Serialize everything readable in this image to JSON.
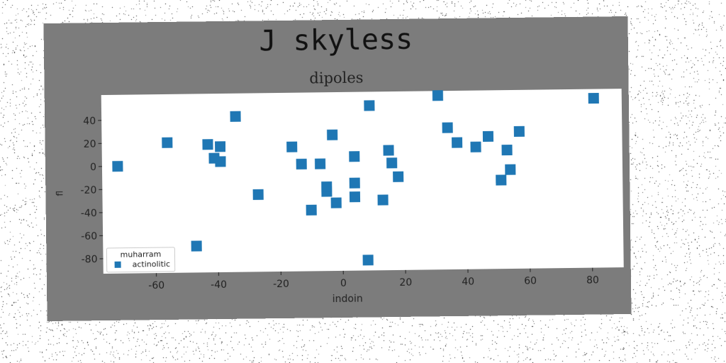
{
  "chart_data": {
    "type": "scatter",
    "title": "J skyless",
    "subtitle": "dipoles",
    "xlabel": "indoin",
    "ylabel": "fl",
    "xlim": [
      -77,
      90
    ],
    "ylim": [
      -93,
      62
    ],
    "xticks": [
      -60,
      -40,
      -20,
      0,
      20,
      40,
      60,
      80
    ],
    "yticks": [
      40,
      20,
      0,
      -20,
      -40,
      -60,
      -80
    ],
    "grid": false,
    "legend": {
      "title": "muharram",
      "placement": "lower-left",
      "entries": [
        "actinolitic"
      ]
    },
    "series": [
      {
        "name": "actinolitic",
        "color": "#1f77b4",
        "marker": "square",
        "points": [
          [
            -72,
            0
          ],
          [
            -56,
            20
          ],
          [
            -47,
            -70
          ],
          [
            -43,
            18
          ],
          [
            -41,
            6
          ],
          [
            -39,
            16
          ],
          [
            -39,
            3
          ],
          [
            -34,
            42
          ],
          [
            -27,
            -26
          ],
          [
            -16,
            15
          ],
          [
            -13,
            0
          ],
          [
            -10,
            -40
          ],
          [
            -7,
            0
          ],
          [
            -5,
            -24
          ],
          [
            -5,
            -20
          ],
          [
            -3,
            25
          ],
          [
            -2,
            -34
          ],
          [
            4,
            6
          ],
          [
            4,
            -17
          ],
          [
            4,
            -29
          ],
          [
            8,
            -84
          ],
          [
            9,
            50
          ],
          [
            13,
            -32
          ],
          [
            15,
            11
          ],
          [
            16,
            0
          ],
          [
            18,
            -12
          ],
          [
            31,
            58
          ],
          [
            34,
            30
          ],
          [
            37,
            17
          ],
          [
            43,
            13
          ],
          [
            47,
            22
          ],
          [
            51,
            -16
          ],
          [
            53,
            10
          ],
          [
            54,
            -7
          ],
          [
            57,
            26
          ],
          [
            81,
            54
          ]
        ]
      }
    ]
  }
}
